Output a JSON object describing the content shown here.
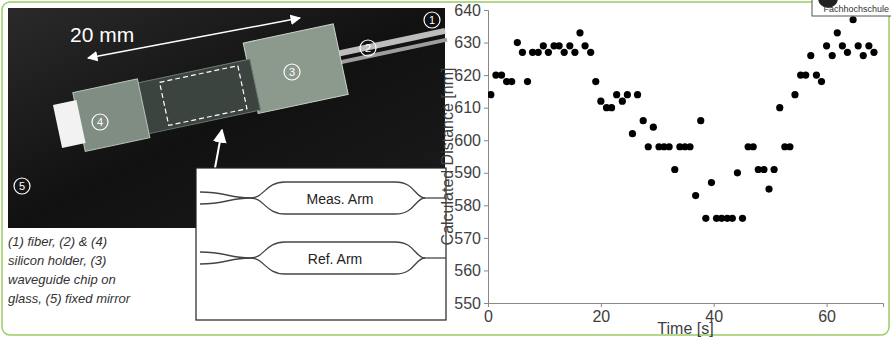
{
  "chart_data": {
    "type": "scatter",
    "x_label": "Time [s]",
    "y_label": "Calculated Distance [nm]",
    "x": [
      0.5,
      1.4,
      2.4,
      3.3,
      4.2,
      5.2,
      6.1,
      7.0,
      7.9,
      8.9,
      9.8,
      10.7,
      11.7,
      12.6,
      13.5,
      14.5,
      15.4,
      16.3,
      17.2,
      18.2,
      19.1,
      20.0,
      21.0,
      21.9,
      22.8,
      23.8,
      24.7,
      25.6,
      26.5,
      27.5,
      28.4,
      29.3,
      30.3,
      31.2,
      32.1,
      33.1,
      34.0,
      34.9,
      35.8,
      36.8,
      37.7,
      38.6,
      39.6,
      40.5,
      41.4,
      42.4,
      43.3,
      44.2,
      45.1,
      46.1,
      47.0,
      47.9,
      48.9,
      49.8,
      50.7,
      51.7,
      52.6,
      53.5,
      54.4,
      55.4,
      56.3,
      57.2,
      58.2,
      59.1,
      60.0,
      61.0,
      61.9,
      62.8,
      63.7,
      64.7,
      65.6,
      66.5,
      67.5,
      68.4
    ],
    "values": [
      614,
      620,
      620,
      618,
      618,
      630,
      627,
      618,
      627,
      627,
      629,
      627,
      629,
      629,
      627,
      629,
      627,
      633,
      629,
      627,
      618,
      612,
      610,
      610,
      614,
      612,
      614,
      602,
      614,
      606,
      598,
      604,
      598,
      598,
      598,
      591,
      598,
      598,
      598,
      583,
      606,
      576,
      587,
      576,
      576,
      576,
      576,
      590,
      576,
      598,
      598,
      591,
      591,
      585,
      591,
      610,
      598,
      598,
      614,
      620,
      620,
      626,
      620,
      618,
      629,
      626,
      633,
      629,
      627,
      637,
      629,
      626,
      629,
      627
    ],
    "color": "#000000",
    "marker": "circle",
    "xlim": [
      0,
      70
    ],
    "xticks": [
      0,
      20,
      40,
      60
    ],
    "ylim": [
      550,
      640
    ],
    "yticks": [
      550,
      560,
      570,
      580,
      590,
      600,
      610,
      620,
      630,
      640
    ],
    "grid": false
  },
  "figure": {
    "scale_label": "20 mm",
    "part_numbers": [
      "1",
      "2",
      "3",
      "4",
      "5"
    ],
    "caption": [
      "(1) fiber, (2) & (4)",
      "silicon holder, (3)",
      "waveguide chip on",
      "glass, (5) fixed mirror"
    ],
    "inset_labels": [
      "Meas. Arm",
      "Ref. Arm"
    ],
    "logo_text": "Fachhochschule"
  }
}
